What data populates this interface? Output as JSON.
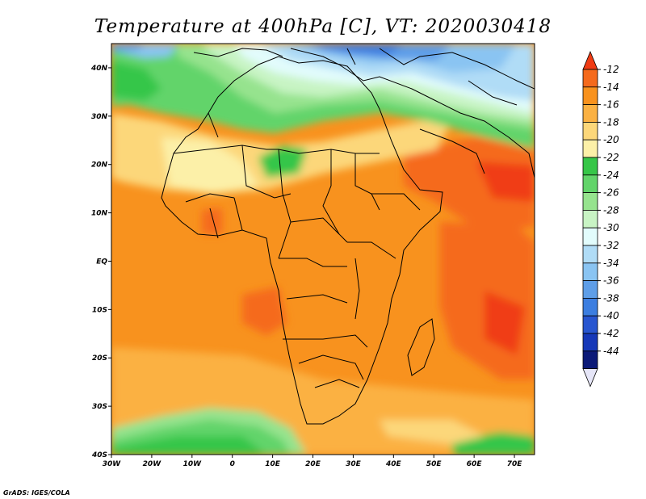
{
  "title": "Temperature at 400hPa [C], VT: 2020030418",
  "credit": "GrADS: IGES/COLA",
  "map": {
    "lon_range": [
      -30,
      75
    ],
    "lat_range": [
      -40,
      45
    ],
    "lon_ticks": [
      {
        "v": -30,
        "label": "30W"
      },
      {
        "v": -20,
        "label": "20W"
      },
      {
        "v": -10,
        "label": "10W"
      },
      {
        "v": 0,
        "label": "0"
      },
      {
        "v": 10,
        "label": "10E"
      },
      {
        "v": 20,
        "label": "20E"
      },
      {
        "v": 30,
        "label": "30E"
      },
      {
        "v": 40,
        "label": "40E"
      },
      {
        "v": 50,
        "label": "50E"
      },
      {
        "v": 60,
        "label": "60E"
      },
      {
        "v": 70,
        "label": "70E"
      }
    ],
    "lat_ticks": [
      {
        "v": 40,
        "label": "40N"
      },
      {
        "v": 30,
        "label": "30N"
      },
      {
        "v": 20,
        "label": "20N"
      },
      {
        "v": 10,
        "label": "10N"
      },
      {
        "v": 0,
        "label": "EQ"
      },
      {
        "v": -10,
        "label": "10S"
      },
      {
        "v": -20,
        "label": "20S"
      },
      {
        "v": -30,
        "label": "30S"
      },
      {
        "v": -40,
        "label": "40S"
      }
    ]
  },
  "colorbar": {
    "labels": [
      "-12",
      "-14",
      "-16",
      "-18",
      "-20",
      "-22",
      "-24",
      "-26",
      "-28",
      "-30",
      "-32",
      "-34",
      "-36",
      "-38",
      "-40",
      "-42",
      "-44"
    ],
    "colors": [
      "#f03c14",
      "#f56a1c",
      "#f8921e",
      "#fbb142",
      "#fcd77a",
      "#fcf0a8",
      "#36c648",
      "#62d46a",
      "#96e38e",
      "#c8f4c4",
      "#e2fcfc",
      "#b0dcf6",
      "#8ac4f2",
      "#5e9ee8",
      "#3c7ee0",
      "#2856d0",
      "#1638b8",
      "#0c1a78",
      "#e6e6f8"
    ]
  }
}
